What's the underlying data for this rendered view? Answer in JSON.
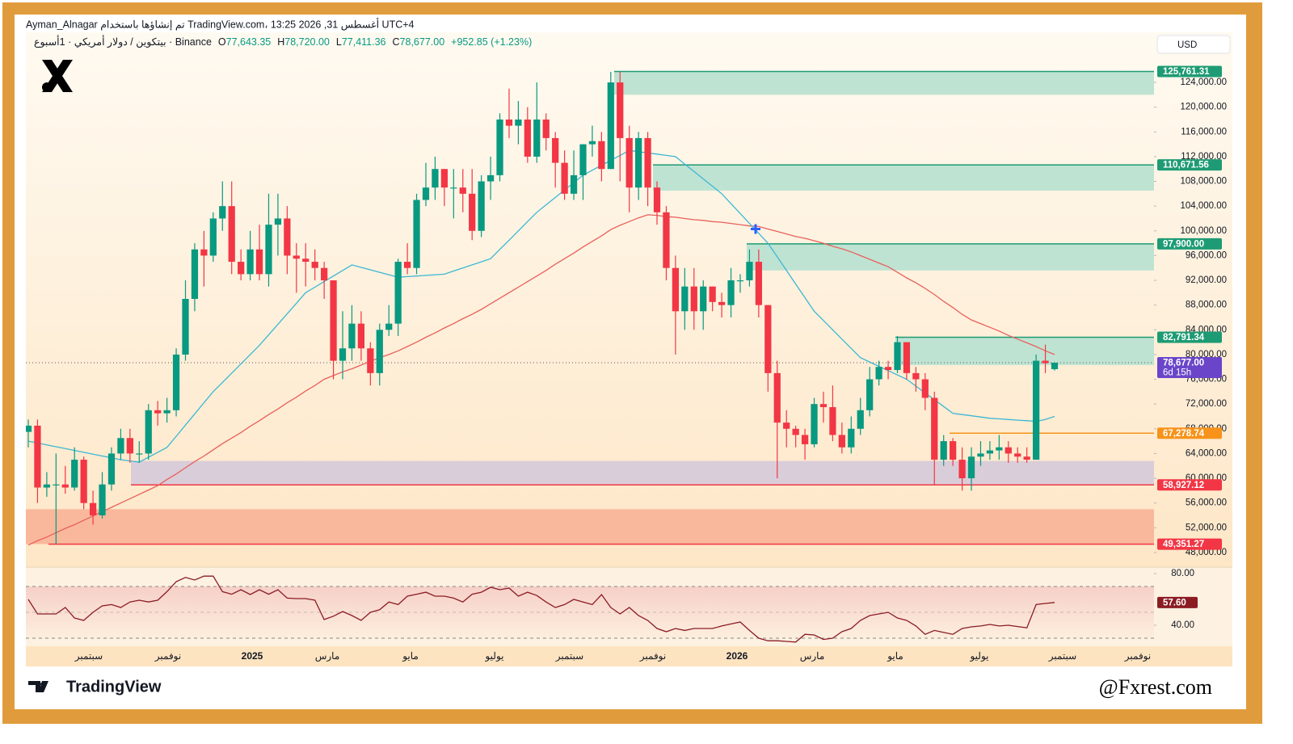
{
  "header": {
    "attribution": "Ayman_Alnagar تم إنشاؤها باستخدام TradingView.com، 13:25 2026 ,31 أغسطس UTC+4",
    "symbol": "بيتكوين / دولار أمريكي · 1أسبوع · Binance",
    "ohlc": [
      {
        "label": "O",
        "value": "77,643.35"
      },
      {
        "label": "H",
        "value": "78,720.00"
      },
      {
        "label": "L",
        "value": "77,411.36"
      },
      {
        "label": "C",
        "value": "78,677.00"
      }
    ],
    "change": "+952.85 (+1.23%)"
  },
  "currency": "USD",
  "brand": "TradingView",
  "watermark": "@Fxrest.com",
  "chart_data": {
    "type": "candlestick",
    "up_color": "#089981",
    "down_color": "#f23645",
    "grid": false,
    "open": [
      67500,
      68500,
      58500,
      59000,
      59000,
      58500,
      63000,
      56000,
      54000,
      59000,
      64000,
      66500,
      64000,
      64000,
      71000,
      70500,
      71000,
      80000,
      89000,
      97000,
      96000,
      102000,
      104000,
      95000,
      93000,
      97000,
      93000,
      101000,
      102000,
      96000,
      95500,
      95000,
      94000,
      92000,
      79000,
      81000,
      85000,
      81000,
      77000,
      84000,
      85000,
      95000,
      94000,
      105000,
      107000,
      110000,
      107000,
      107000,
      106000,
      100000,
      108000,
      109000,
      118000,
      117000,
      118000,
      112000,
      118000,
      115000,
      111000,
      106000,
      109000,
      114000,
      114500,
      110000,
      124000,
      115000,
      107000,
      115000,
      107000,
      103000,
      94000,
      87000,
      91000,
      87000,
      91000,
      88500,
      88000,
      92000,
      92000,
      95000,
      88000,
      77000,
      69000,
      68000,
      67000,
      65500,
      72000,
      71500,
      67000,
      65000,
      68000,
      71000,
      76000,
      78000,
      77500,
      82000,
      77000,
      76000,
      73000,
      63000,
      66000,
      63000,
      60000,
      63500,
      64000,
      64500,
      65000,
      64000,
      63500,
      63000,
      79000,
      77643.35
    ],
    "high": [
      69500,
      69500,
      61000,
      64000,
      62000,
      65000,
      63500,
      58000,
      61000,
      65000,
      68000,
      68000,
      66000,
      72000,
      72500,
      73000,
      81000,
      92000,
      98000,
      100000,
      103000,
      108000,
      108000,
      97000,
      100000,
      101000,
      106000,
      106000,
      104000,
      98000,
      98000,
      97000,
      95000,
      92000,
      87000,
      88000,
      87000,
      82000,
      85000,
      88000,
      95500,
      98000,
      106000,
      111000,
      112000,
      110000,
      110000,
      110000,
      110000,
      109000,
      112000,
      119000,
      123000,
      121000,
      120000,
      124000,
      119000,
      116000,
      113000,
      113000,
      114000,
      117000,
      116000,
      125700,
      125700,
      117000,
      116000,
      116000,
      108000,
      104000,
      96000,
      94000,
      94000,
      92000,
      91000,
      90000,
      94000,
      93000,
      97000,
      97000,
      88000,
      79000,
      71000,
      68500,
      68000,
      73000,
      74000,
      75000,
      69000,
      70000,
      73000,
      78000,
      79000,
      79000,
      83000,
      82000,
      78000,
      77000,
      74000,
      67000,
      66500,
      65000,
      65000,
      66000,
      66000,
      67000,
      66000,
      65000,
      65000,
      80000,
      81600,
      78720
    ],
    "low": [
      65000,
      56000,
      57000,
      49400,
      57500,
      58000,
      55000,
      52500,
      53500,
      58000,
      63000,
      62500,
      62500,
      63000,
      68500,
      69000,
      70000,
      79000,
      87000,
      91000,
      95000,
      100000,
      93000,
      92000,
      92000,
      92000,
      91000,
      96000,
      93000,
      90000,
      91000,
      92000,
      89000,
      76000,
      76000,
      79000,
      79000,
      75000,
      75000,
      83000,
      83000,
      93000,
      93000,
      104000,
      105000,
      104000,
      102000,
      103000,
      98500,
      99000,
      105000,
      108000,
      115000,
      114000,
      111000,
      111000,
      113000,
      107000,
      105000,
      105000,
      105000,
      112000,
      108000,
      110000,
      108000,
      103000,
      105000,
      104000,
      101000,
      92000,
      80000,
      84000,
      84000,
      84000,
      87000,
      86000,
      86000,
      90000,
      91000,
      86000,
      74000,
      60000,
      65000,
      65000,
      63000,
      65000,
      69000,
      66000,
      64000,
      64000,
      67000,
      70000,
      75000,
      76000,
      77000,
      76000,
      74000,
      71000,
      59000,
      62000,
      62000,
      58000,
      58000,
      62000,
      63000,
      63000,
      62500,
      62500,
      62500,
      63000,
      77000,
      77411.36
    ],
    "close": [
      68500,
      58500,
      59000,
      59000,
      58500,
      63000,
      56000,
      54000,
      59000,
      64000,
      66500,
      64000,
      64000,
      71000,
      70500,
      71000,
      80000,
      89000,
      97000,
      96000,
      102000,
      104000,
      95000,
      93000,
      97000,
      93000,
      101000,
      102000,
      96000,
      95500,
      95000,
      94000,
      92000,
      79000,
      81000,
      85000,
      81000,
      77000,
      84000,
      85000,
      95000,
      94000,
      105000,
      107000,
      110000,
      107000,
      107000,
      106000,
      100000,
      108000,
      109000,
      118000,
      117000,
      118000,
      112000,
      118000,
      115000,
      111000,
      106000,
      109000,
      114000,
      114500,
      110000,
      124000,
      115000,
      107000,
      115000,
      107000,
      103000,
      94000,
      87000,
      91000,
      87000,
      91000,
      88500,
      88000,
      92000,
      92000,
      95000,
      88000,
      77000,
      69000,
      68000,
      67000,
      65500,
      72000,
      71500,
      67000,
      65000,
      68000,
      71000,
      76000,
      78000,
      77500,
      82000,
      77000,
      76000,
      73000,
      63000,
      66000,
      63000,
      60000,
      63500,
      64000,
      64500,
      65000,
      64000,
      63500,
      63000,
      79000,
      78600,
      78677
    ],
    "ma_fast": {
      "color": "#3bb8d4",
      "values": [
        66000,
        65700,
        65400,
        65100,
        64800,
        64500,
        64200,
        63900,
        63600,
        63300,
        63000,
        62800,
        62600,
        63400,
        64200,
        65000,
        66800,
        68600,
        70400,
        72200,
        74000,
        75500,
        77000,
        78500,
        80000,
        81500,
        83200,
        84900,
        86600,
        88300,
        90000,
        90900,
        91800,
        92700,
        93600,
        94500,
        94100,
        93700,
        93300,
        92900,
        92500,
        92600,
        92700,
        92800,
        92900,
        93000,
        93500,
        94000,
        94500,
        95000,
        95500,
        97000,
        98500,
        100000,
        101500,
        103000,
        104200,
        105400,
        106600,
        107800,
        109000,
        109800,
        110600,
        111400,
        112200,
        113000,
        112800,
        112600,
        112400,
        112200,
        112000,
        110800,
        109600,
        108400,
        107200,
        106000,
        104400,
        102800,
        101200,
        99600,
        98000,
        95800,
        93600,
        91400,
        89200,
        87000,
        85500,
        84000,
        82500,
        81000,
        79500,
        78800,
        78100,
        77400,
        76700,
        76000,
        74900,
        73800,
        72700,
        71600,
        70500,
        70300,
        70100,
        69900,
        69700,
        69600,
        69500,
        69400,
        69300,
        69200,
        69500,
        70000
      ]
    },
    "ma_slow": {
      "color": "#e8605c",
      "values": [
        49200,
        49900,
        50500,
        51200,
        51900,
        52500,
        53200,
        53900,
        54600,
        55300,
        56000,
        56700,
        57400,
        58100,
        58800,
        59800,
        60700,
        61700,
        62700,
        63600,
        64600,
        65600,
        66500,
        67400,
        68400,
        69300,
        70300,
        71200,
        72200,
        73100,
        74100,
        75000,
        76000,
        76600,
        77200,
        77700,
        78300,
        78900,
        79500,
        80000,
        80600,
        81300,
        82000,
        82800,
        83500,
        84300,
        85000,
        85800,
        86500,
        87300,
        88200,
        89100,
        90000,
        90900,
        91800,
        92700,
        93600,
        94600,
        95500,
        96400,
        97400,
        98300,
        99200,
        100200,
        100900,
        101500,
        102100,
        102600,
        102500,
        102300,
        102200,
        102000,
        101800,
        101700,
        101500,
        101400,
        101200,
        101000,
        100800,
        100700,
        100300,
        99900,
        99500,
        99100,
        98800,
        98400,
        98000,
        97500,
        97100,
        96600,
        96000,
        95400,
        94800,
        94200,
        93300,
        92400,
        91600,
        90700,
        89700,
        88600,
        87600,
        86500,
        85600,
        85000,
        84400,
        83800,
        83100,
        82500,
        81900,
        81300,
        80600,
        80000
      ]
    },
    "ylim": [
      45900,
      132100
    ],
    "yticks": [
      {
        "value": 124000,
        "label": "124,000.00"
      },
      {
        "value": 120000,
        "label": "120,000.00"
      },
      {
        "value": 116000,
        "label": "116,000.00"
      },
      {
        "value": 112000,
        "label": "112,000.00"
      },
      {
        "value": 108000,
        "label": "108,000.00"
      },
      {
        "value": 104000,
        "label": "104,000.00"
      },
      {
        "value": 100000,
        "label": "100,000.00"
      },
      {
        "value": 96000,
        "label": "96,000.00"
      },
      {
        "value": 92000,
        "label": "92,000.00"
      },
      {
        "value": 88000,
        "label": "88,000.00"
      },
      {
        "value": 84000,
        "label": "84,000.00"
      },
      {
        "value": 80000,
        "label": "80,000.00"
      },
      {
        "value": 76000,
        "label": "76,000.00"
      },
      {
        "value": 72000,
        "label": "72,000.00"
      },
      {
        "value": 68000,
        "label": "68,000.00"
      },
      {
        "value": 64000,
        "label": "64,000.00"
      },
      {
        "value": 60000,
        "label": "60,000.00"
      },
      {
        "value": 56000,
        "label": "56,000.00"
      },
      {
        "value": 52000,
        "label": "52,000.00"
      },
      {
        "value": 48000,
        "label": "48,000.00"
      }
    ],
    "zones": [
      {
        "top": 125761.31,
        "bottom": 122000,
        "color": "#bfe3d2"
      },
      {
        "top": 110671.56,
        "bottom": 106500,
        "color": "#bfe3d2"
      },
      {
        "top": 97900,
        "bottom": 93600,
        "color": "#bfe3d2"
      },
      {
        "top": 82791.34,
        "bottom": 78300,
        "color": "#bfe3d2"
      },
      {
        "top": 62800,
        "bottom": 58927.12,
        "color": "#d9cdd9"
      },
      {
        "top": 55000,
        "bottom": 49351.27,
        "color": "#f9b89c"
      }
    ],
    "price_tags": [
      {
        "value": 125761.31,
        "label": "125,761.31",
        "color": "#1e9b74"
      },
      {
        "value": 110671.56,
        "label": "110,671.56",
        "color": "#1e9b74"
      },
      {
        "value": 97900,
        "label": "97,900.00",
        "color": "#1e9b74"
      },
      {
        "value": 82791.34,
        "label": "82,791.34",
        "color": "#1e9b74"
      },
      {
        "value": 78677,
        "label": "78,677.00",
        "countdown": "6d 15h",
        "color": "#6a45c9"
      },
      {
        "value": 67278.74,
        "label": "67,278.74",
        "color": "#f7931a"
      },
      {
        "value": 58927.12,
        "label": "58,927.12",
        "color": "#f23645"
      },
      {
        "value": 49351.27,
        "label": "49,351.27",
        "color": "#f23645"
      }
    ],
    "x_labels": [
      "سبتمبر",
      "نوفمبر",
      "2025",
      "مارس",
      "مايو",
      "يوليو",
      "سبتمبر",
      "نوفمبر",
      "2026",
      "مارس",
      "مايو",
      "يوليو",
      "سبتمبر",
      "نوفمبر"
    ],
    "rsi": {
      "color": "#8b1c24",
      "ylim": [
        25.6,
        84.4
      ],
      "yticks": [
        {
          "value": 80,
          "label": "80.00"
        },
        {
          "value": 40,
          "label": "40.00"
        }
      ],
      "bands": [
        70,
        50,
        30
      ],
      "last_label": "57.60",
      "values": [
        60,
        48.75,
        48.75,
        48.75,
        53.75,
        45.6,
        43.75,
        50,
        55,
        56,
        53.75,
        58,
        59.4,
        58,
        59.4,
        66,
        73.75,
        77,
        75,
        78,
        78,
        66,
        64,
        67.5,
        63.75,
        67.5,
        64,
        67.5,
        61,
        60.6,
        60.6,
        59.4,
        44.4,
        47,
        50.6,
        47.5,
        43.75,
        50,
        52,
        58,
        56,
        62.5,
        64,
        65.6,
        62.5,
        62.5,
        61,
        58,
        64,
        65.6,
        69.4,
        67.5,
        68.75,
        62.5,
        65.6,
        63,
        58,
        53.75,
        56,
        60,
        58,
        56,
        63.75,
        53.75,
        48.75,
        53.75,
        47.5,
        43.75,
        37.5,
        35,
        37.5,
        36,
        37.5,
        37.5,
        37.5,
        39.4,
        41,
        42.5,
        36,
        30,
        28,
        28,
        27.5,
        27,
        33,
        32.5,
        29,
        30,
        35,
        37.5,
        43.75,
        47.5,
        48.75,
        50,
        45.6,
        43.75,
        39.4,
        33,
        36,
        34.4,
        33,
        37.5,
        38.75,
        39.4,
        40.6,
        39.4,
        40,
        39,
        38,
        56,
        56.9,
        57.6
      ]
    }
  }
}
